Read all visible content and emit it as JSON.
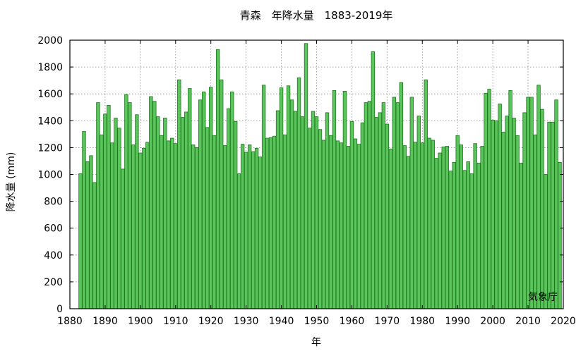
{
  "chart_data": {
    "type": "bar",
    "title": "青森　年降水量　1883-2019年",
    "xlabel": "年",
    "ylabel": "降水量 (mm)",
    "credit": "気象庁",
    "xlim": [
      1880,
      2020
    ],
    "ylim": [
      0,
      2000
    ],
    "xticks": [
      1880,
      1890,
      1900,
      1910,
      1920,
      1930,
      1940,
      1950,
      1960,
      1970,
      1980,
      1990,
      2000,
      2010,
      2020
    ],
    "yticks": [
      0,
      200,
      400,
      600,
      800,
      1000,
      1200,
      1400,
      1600,
      1800,
      2000
    ],
    "grid": true,
    "bar_color": "#5cc45c",
    "bar_edge_color": "#1a7a1a",
    "x": [
      1883,
      1884,
      1885,
      1886,
      1887,
      1888,
      1889,
      1890,
      1891,
      1892,
      1893,
      1894,
      1895,
      1896,
      1897,
      1898,
      1899,
      1900,
      1901,
      1902,
      1903,
      1904,
      1905,
      1906,
      1907,
      1908,
      1909,
      1910,
      1911,
      1912,
      1913,
      1914,
      1915,
      1916,
      1917,
      1918,
      1919,
      1920,
      1921,
      1922,
      1923,
      1924,
      1925,
      1926,
      1927,
      1928,
      1929,
      1930,
      1931,
      1932,
      1933,
      1934,
      1935,
      1936,
      1937,
      1938,
      1939,
      1940,
      1941,
      1942,
      1943,
      1944,
      1945,
      1946,
      1947,
      1948,
      1949,
      1950,
      1951,
      1952,
      1953,
      1954,
      1955,
      1956,
      1957,
      1958,
      1959,
      1960,
      1961,
      1962,
      1963,
      1964,
      1965,
      1966,
      1967,
      1968,
      1969,
      1970,
      1971,
      1972,
      1973,
      1974,
      1975,
      1976,
      1977,
      1978,
      1979,
      1980,
      1981,
      1982,
      1983,
      1984,
      1985,
      1986,
      1987,
      1988,
      1989,
      1990,
      1991,
      1992,
      1993,
      1994,
      1995,
      1996,
      1997,
      1998,
      1999,
      2000,
      2001,
      2002,
      2003,
      2004,
      2005,
      2006,
      2007,
      2008,
      2009,
      2010,
      2011,
      2012,
      2013,
      2014,
      2015,
      2016,
      2017,
      2018,
      2019
    ],
    "values": [
      1005,
      1320,
      1095,
      1140,
      940,
      1535,
      1295,
      1450,
      1515,
      1235,
      1420,
      1345,
      1040,
      1595,
      1535,
      1220,
      1445,
      1160,
      1195,
      1240,
      1580,
      1545,
      1430,
      1290,
      1420,
      1250,
      1270,
      1230,
      1705,
      1425,
      1465,
      1640,
      1220,
      1200,
      1555,
      1615,
      1350,
      1650,
      1290,
      1930,
      1705,
      1215,
      1490,
      1615,
      1395,
      1005,
      1225,
      1165,
      1220,
      1170,
      1195,
      1130,
      1665,
      1270,
      1275,
      1285,
      1475,
      1645,
      1295,
      1660,
      1555,
      1470,
      1720,
      1430,
      1975,
      1345,
      1470,
      1430,
      1335,
      1255,
      1460,
      1290,
      1625,
      1250,
      1235,
      1620,
      1210,
      1395,
      1265,
      1225,
      1385,
      1535,
      1545,
      1915,
      1425,
      1460,
      1535,
      1375,
      1190,
      1575,
      1535,
      1685,
      1215,
      1135,
      1575,
      1240,
      1435,
      1235,
      1705,
      1270,
      1255,
      1120,
      1160,
      1205,
      1210,
      1025,
      1090,
      1290,
      1220,
      1030,
      1095,
      1005,
      1230,
      1085,
      1210,
      1605,
      1635,
      1405,
      1400,
      1525,
      1315,
      1435,
      1625,
      1420,
      1290,
      1085,
      1460,
      1575,
      1575,
      1295,
      1665,
      1485,
      1000,
      1390,
      1390,
      1555,
      1090
    ]
  }
}
